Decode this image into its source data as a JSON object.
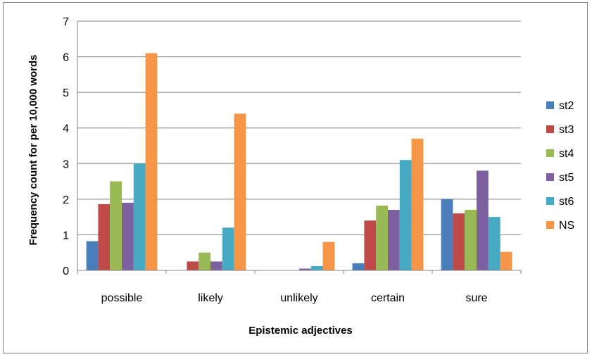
{
  "chart_data": {
    "type": "bar",
    "title": "",
    "xlabel": "Epistemic adjectives",
    "ylabel": "Frequency count for per 10,000 words",
    "categories": [
      "possible",
      "likely",
      "unlikely",
      "certain",
      "sure"
    ],
    "ylim": [
      0,
      7
    ],
    "yticks": [
      0,
      1,
      2,
      3,
      4,
      5,
      6,
      7
    ],
    "grid": true,
    "legend_position": "right",
    "series": [
      {
        "name": "st2",
        "color": "#4a7ebb",
        "values": [
          0.82,
          0,
          0,
          0.2,
          2.0
        ]
      },
      {
        "name": "st3",
        "color": "#be4b48",
        "values": [
          1.86,
          0.25,
          0,
          1.4,
          1.6
        ]
      },
      {
        "name": "st4",
        "color": "#98b954",
        "values": [
          2.5,
          0.5,
          0,
          1.82,
          1.7
        ]
      },
      {
        "name": "st5",
        "color": "#7d60a0",
        "values": [
          1.9,
          0.25,
          0.05,
          1.7,
          2.8
        ]
      },
      {
        "name": "st6",
        "color": "#46aac5",
        "values": [
          3.0,
          1.2,
          0.12,
          3.1,
          1.5
        ]
      },
      {
        "name": "NS",
        "color": "#f79646",
        "values": [
          6.1,
          4.4,
          0.8,
          3.7,
          0.52
        ]
      }
    ]
  }
}
